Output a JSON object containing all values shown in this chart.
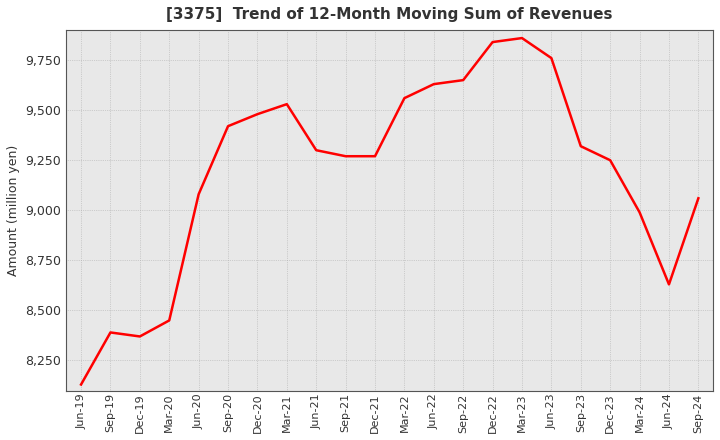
{
  "title": "[3375]  Trend of 12-Month Moving Sum of Revenues",
  "ylabel": "Amount (million yen)",
  "line_color": "#ff0000",
  "line_width": 1.8,
  "bg_color": "#ffffff",
  "plot_bg_color": "#e8e8e8",
  "grid_color": "#aaaaaa",
  "grid_style": ":",
  "ylim": [
    8100,
    9900
  ],
  "yticks": [
    8250,
    8500,
    8750,
    9000,
    9250,
    9500,
    9750
  ],
  "labels": [
    "Jun-19",
    "Sep-19",
    "Dec-19",
    "Mar-20",
    "Jun-20",
    "Sep-20",
    "Dec-20",
    "Mar-21",
    "Jun-21",
    "Sep-21",
    "Dec-21",
    "Mar-22",
    "Jun-22",
    "Sep-22",
    "Dec-22",
    "Mar-23",
    "Jun-23",
    "Sep-23",
    "Dec-23",
    "Mar-24",
    "Jun-24",
    "Sep-24"
  ],
  "values": [
    8130,
    8390,
    8370,
    8450,
    9080,
    9420,
    9480,
    9530,
    9300,
    9270,
    9270,
    9560,
    9630,
    9650,
    9840,
    9860,
    9760,
    9320,
    9250,
    8990,
    8630,
    9060
  ]
}
